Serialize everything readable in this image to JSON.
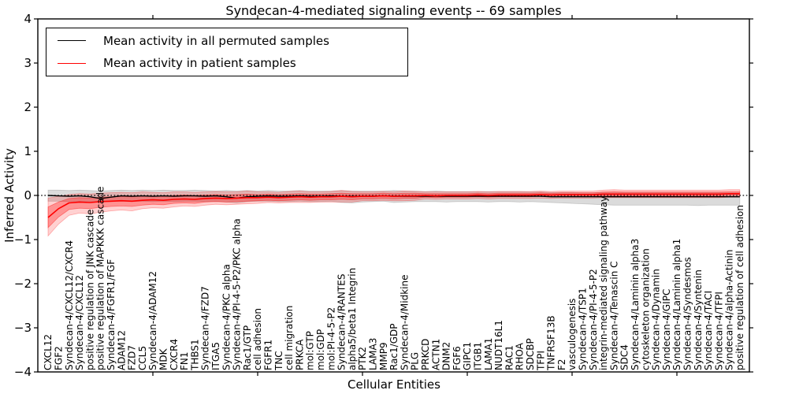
{
  "title": "Syndecan-4-mediated signaling events -- 69 samples",
  "ylabel": "Inferred Activity",
  "xlabel": "Cellular Entities",
  "legend": {
    "items": [
      {
        "label": "Mean activity in all permuted samples",
        "color": "#000000"
      },
      {
        "label": "Mean activity in patient samples",
        "color": "#ff0000"
      }
    ]
  },
  "chart_data": {
    "type": "line",
    "title": "Syndecan-4-mediated signaling events -- 69 samples",
    "xlabel": "Cellular Entities",
    "ylabel": "Inferred Activity",
    "ylim": [
      -4,
      4
    ],
    "yticks": [
      4,
      3,
      2,
      1,
      0,
      -1,
      -2,
      -3,
      -4
    ],
    "ytick_labels": [
      "4",
      "3",
      "2",
      "1",
      "0",
      "−1",
      "−2",
      "−3",
      "−4"
    ],
    "xtick_major_indices": [
      10,
      20,
      30,
      40,
      50,
      60
    ],
    "grid": false,
    "zero_line": true,
    "legend_position": "upper left",
    "categories": [
      "CXCL12",
      "FGF2",
      "Syndecan-4/CXCL12/CXCR4",
      "Syndecan-4/CXCL12",
      "positive regulation of JNK cascade",
      "positive regulation of MAPKKK cascade",
      "Syndecan-4/FGFR1/FGF",
      "ADAM12",
      "FZD7",
      "CCL5",
      "Syndecan-4/ADAM12",
      "MDK",
      "CXCR4",
      "FN1",
      "THBS1",
      "Syndecan-4/FZD7",
      "ITGA5",
      "Syndecan-4/PKC alpha",
      "Syndecan-4/PI-4-5-P2/PKC alpha",
      "Rac1/GTP",
      "cell adhesion",
      "FGFR1",
      "TNC",
      "cell migration",
      "PRKCA",
      "mol:GTP",
      "mol:GDP",
      "mol:PI-4-5-P2",
      "Syndecan-4/RANTES",
      "alpha5/beta1 Integrin",
      "PTK2",
      "LAMA3",
      "MMP9",
      "Rac1/GDP",
      "Syndecan-4/Midkine",
      "PLG",
      "PRKCD",
      "ACTN1",
      "DNM2",
      "FGF6",
      "GIPC1",
      "ITGB1",
      "LAMA1",
      "NUDT16L1",
      "RAC1",
      "RHOA",
      "SDCBP",
      "TFPI",
      "TNFRSF13B",
      "F2",
      "vasculogenesis",
      "Syndecan-4/TSP1",
      "Syndecan-4/PI-4-5-P2",
      "integrin-mediated signaling pathway",
      "Syndecan-4/Tenascin C",
      "SDC4",
      "Syndecan-4/Laminin alpha3",
      "cytoskeleton organization",
      "Syndecan-4/Dynamin",
      "Syndecan-4/GIPC",
      "Syndecan-4/Laminin alpha1",
      "Syndecan-4/Syndesmos",
      "Syndecan-4/Syntenin",
      "Syndecan-4/TACI",
      "Syndecan-4/TFPI",
      "Syndecan-4/alpha-Actinin",
      "positive regulation of cell adhesion"
    ],
    "series": [
      {
        "name": "Mean activity in all permuted samples",
        "color": "#000000",
        "values": [
          0.0,
          -0.01,
          -0.02,
          -0.01,
          -0.03,
          -0.07,
          -0.04,
          -0.01,
          -0.02,
          -0.01,
          -0.02,
          -0.01,
          -0.02,
          -0.01,
          -0.01,
          -0.02,
          -0.01,
          -0.03,
          -0.06,
          -0.03,
          -0.02,
          -0.01,
          -0.02,
          -0.02,
          -0.01,
          -0.02,
          -0.02,
          -0.01,
          -0.02,
          -0.02,
          -0.02,
          -0.02,
          -0.01,
          -0.02,
          -0.02,
          -0.02,
          -0.02,
          -0.02,
          -0.02,
          -0.02,
          -0.02,
          -0.02,
          -0.02,
          -0.02,
          -0.02,
          -0.02,
          -0.02,
          -0.02,
          -0.03,
          -0.03,
          -0.03,
          -0.03,
          -0.03,
          -0.03,
          -0.03,
          -0.03,
          -0.03,
          -0.03,
          -0.03,
          -0.03,
          -0.03,
          -0.03,
          -0.03,
          -0.03,
          -0.03,
          -0.03,
          -0.03
        ]
      },
      {
        "name": "Mean activity in patient samples",
        "color": "#ff0000",
        "values": [
          -0.5,
          -0.3,
          -0.17,
          -0.15,
          -0.16,
          -0.14,
          -0.13,
          -0.12,
          -0.13,
          -0.11,
          -0.1,
          -0.11,
          -0.09,
          -0.08,
          -0.09,
          -0.07,
          -0.06,
          -0.07,
          -0.06,
          -0.05,
          -0.05,
          -0.04,
          -0.05,
          -0.04,
          -0.03,
          -0.04,
          -0.03,
          -0.03,
          -0.02,
          -0.03,
          -0.02,
          -0.02,
          -0.01,
          -0.02,
          -0.01,
          -0.01,
          0.0,
          -0.01,
          0.0,
          0.0,
          0.0,
          0.01,
          0.0,
          0.01,
          0.01,
          0.01,
          0.01,
          0.02,
          0.01,
          0.02,
          0.02,
          0.02,
          0.02,
          0.03,
          0.03,
          0.03,
          0.03,
          0.03,
          0.03,
          0.03,
          0.03,
          0.03,
          0.03,
          0.03,
          0.03,
          0.04,
          0.04
        ]
      }
    ],
    "bands": [
      {
        "name": "permuted-activity-range",
        "color": "#999999",
        "opacity": 0.35,
        "upper": [
          0.12,
          0.12,
          0.11,
          0.12,
          0.11,
          0.1,
          0.11,
          0.12,
          0.11,
          0.12,
          0.11,
          0.12,
          0.11,
          0.11,
          0.12,
          0.11,
          0.1,
          0.11,
          0.1,
          0.11,
          0.1,
          0.11,
          0.1,
          0.1,
          0.11,
          0.1,
          0.1,
          0.1,
          0.11,
          0.1,
          0.1,
          0.1,
          0.1,
          0.11,
          0.1,
          0.1,
          0.09,
          0.1,
          0.09,
          0.09,
          0.09,
          0.09,
          0.09,
          0.09,
          0.09,
          0.09,
          0.08,
          0.08,
          0.07,
          0.07,
          0.07,
          0.06,
          0.06,
          0.06,
          0.06,
          0.06,
          0.06,
          0.06,
          0.06,
          0.06,
          0.06,
          0.06,
          0.06,
          0.06,
          0.06,
          0.06,
          0.06
        ],
        "lower": [
          -0.13,
          -0.13,
          -0.14,
          -0.13,
          -0.14,
          -0.15,
          -0.14,
          -0.13,
          -0.14,
          -0.13,
          -0.14,
          -0.13,
          -0.14,
          -0.13,
          -0.13,
          -0.14,
          -0.13,
          -0.15,
          -0.17,
          -0.14,
          -0.13,
          -0.13,
          -0.14,
          -0.14,
          -0.13,
          -0.14,
          -0.14,
          -0.13,
          -0.16,
          -0.17,
          -0.15,
          -0.14,
          -0.13,
          -0.16,
          -0.15,
          -0.14,
          -0.14,
          -0.14,
          -0.15,
          -0.14,
          -0.14,
          -0.14,
          -0.15,
          -0.14,
          -0.14,
          -0.15,
          -0.14,
          -0.15,
          -0.16,
          -0.17,
          -0.18,
          -0.19,
          -0.2,
          -0.21,
          -0.22,
          -0.22,
          -0.22,
          -0.22,
          -0.22,
          -0.22,
          -0.22,
          -0.22,
          -0.23,
          -0.22,
          -0.22,
          -0.22,
          -0.22
        ]
      },
      {
        "name": "patient-activity-range-outer",
        "color": "#ff0000",
        "opacity": 0.18,
        "upper": [
          -0.06,
          -0.02,
          0.02,
          0.04,
          0.03,
          0.05,
          0.06,
          0.07,
          0.06,
          0.08,
          0.07,
          0.06,
          0.08,
          0.08,
          0.07,
          0.08,
          0.09,
          0.08,
          0.08,
          0.1,
          0.08,
          0.08,
          0.07,
          0.09,
          0.1,
          0.08,
          0.08,
          0.09,
          0.11,
          0.09,
          0.08,
          0.08,
          0.09,
          0.08,
          0.1,
          0.09,
          0.08,
          0.08,
          0.08,
          0.08,
          0.08,
          0.09,
          0.08,
          0.09,
          0.09,
          0.09,
          0.09,
          0.1,
          0.09,
          0.1,
          0.1,
          0.1,
          0.1,
          0.12,
          0.13,
          0.12,
          0.12,
          0.12,
          0.12,
          0.12,
          0.12,
          0.12,
          0.12,
          0.12,
          0.12,
          0.13,
          0.13
        ],
        "lower": [
          -0.92,
          -0.65,
          -0.45,
          -0.4,
          -0.42,
          -0.38,
          -0.35,
          -0.33,
          -0.35,
          -0.3,
          -0.28,
          -0.29,
          -0.26,
          -0.24,
          -0.25,
          -0.22,
          -0.2,
          -0.21,
          -0.2,
          -0.19,
          -0.18,
          -0.16,
          -0.17,
          -0.16,
          -0.16,
          -0.16,
          -0.15,
          -0.15,
          -0.15,
          -0.15,
          -0.12,
          -0.12,
          -0.11,
          -0.12,
          -0.12,
          -0.11,
          -0.08,
          -0.09,
          -0.08,
          -0.08,
          -0.08,
          -0.07,
          -0.08,
          -0.07,
          -0.07,
          -0.07,
          -0.07,
          -0.06,
          -0.07,
          -0.06,
          -0.06,
          -0.06,
          -0.06,
          -0.05,
          -0.05,
          -0.05,
          -0.05,
          -0.05,
          -0.05,
          -0.05,
          -0.05,
          -0.05,
          -0.05,
          -0.05,
          -0.05,
          -0.04,
          -0.04
        ]
      },
      {
        "name": "patient-activity-range-inner",
        "color": "#ff0000",
        "opacity": 0.3,
        "upper": [
          -0.26,
          -0.15,
          -0.07,
          -0.05,
          -0.06,
          -0.04,
          -0.03,
          -0.02,
          -0.03,
          -0.01,
          -0.01,
          -0.02,
          0.0,
          0.01,
          0.0,
          0.01,
          0.02,
          0.01,
          0.02,
          0.03,
          0.02,
          0.03,
          0.02,
          0.03,
          0.04,
          0.03,
          0.03,
          0.04,
          0.05,
          0.04,
          0.04,
          0.04,
          0.05,
          0.04,
          0.05,
          0.05,
          0.04,
          0.04,
          0.04,
          0.04,
          0.04,
          0.05,
          0.04,
          0.05,
          0.05,
          0.05,
          0.05,
          0.06,
          0.05,
          0.06,
          0.06,
          0.06,
          0.06,
          0.08,
          0.09,
          0.08,
          0.08,
          0.08,
          0.08,
          0.08,
          0.08,
          0.08,
          0.08,
          0.08,
          0.08,
          0.09,
          0.09
        ],
        "lower": [
          -0.73,
          -0.49,
          -0.32,
          -0.29,
          -0.3,
          -0.27,
          -0.25,
          -0.24,
          -0.25,
          -0.22,
          -0.2,
          -0.21,
          -0.18,
          -0.17,
          -0.18,
          -0.15,
          -0.14,
          -0.15,
          -0.14,
          -0.13,
          -0.12,
          -0.11,
          -0.12,
          -0.11,
          -0.1,
          -0.11,
          -0.1,
          -0.1,
          -0.09,
          -0.1,
          -0.08,
          -0.08,
          -0.07,
          -0.08,
          -0.07,
          -0.07,
          -0.04,
          -0.05,
          -0.04,
          -0.04,
          -0.04,
          -0.03,
          -0.04,
          -0.03,
          -0.03,
          -0.03,
          -0.03,
          -0.02,
          -0.03,
          -0.02,
          -0.02,
          -0.02,
          -0.02,
          -0.01,
          -0.01,
          -0.01,
          -0.01,
          -0.01,
          -0.01,
          -0.01,
          -0.01,
          -0.01,
          -0.01,
          -0.01,
          -0.01,
          0.0,
          0.0
        ]
      }
    ]
  }
}
